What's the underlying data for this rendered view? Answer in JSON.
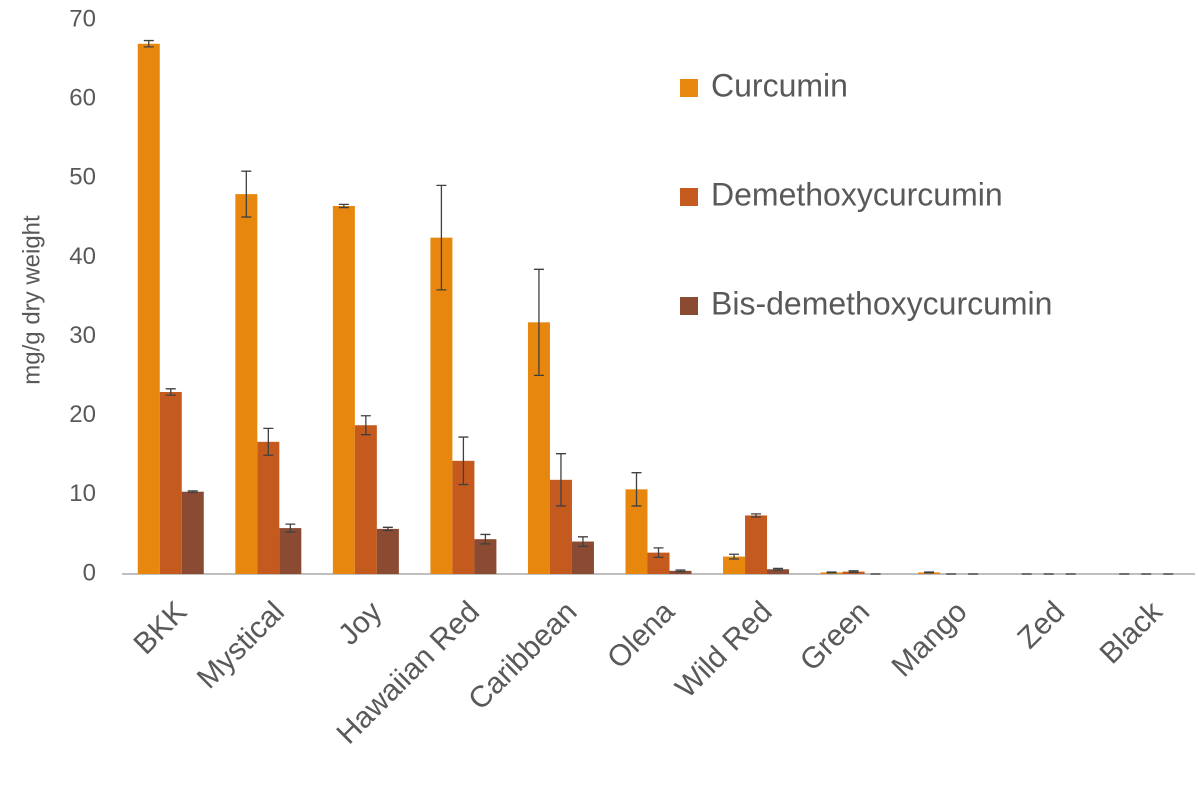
{
  "chart_data": {
    "type": "bar",
    "y_label": "mg/g dry weight",
    "categories": [
      "BKK",
      "Mystical",
      "Joy",
      "Hawaiian Red",
      "Caribbean",
      "Olena",
      "Wild Red",
      "Green",
      "Mango",
      "Zed",
      "Black"
    ],
    "series": [
      {
        "name": "Curcumin",
        "color": "#e8870e",
        "values": [
          67,
          48,
          46.5,
          42.5,
          31.8,
          10.7,
          2.2,
          0.2,
          0.2,
          0,
          0
        ],
        "errors": [
          0.4,
          2.9,
          0.2,
          6.6,
          6.7,
          2.1,
          0.3,
          0.05,
          0.05,
          0,
          0
        ]
      },
      {
        "name": "Demethoxycurcumin",
        "color": "#c55a1e",
        "values": [
          23,
          16.7,
          18.8,
          14.3,
          11.9,
          2.7,
          7.4,
          0.3,
          0,
          0,
          0
        ],
        "errors": [
          0.4,
          1.7,
          1.2,
          3,
          3.3,
          0.6,
          0.2,
          0.1,
          0,
          0,
          0
        ]
      },
      {
        "name": "Bis-demethoxycurcumin",
        "color": "#8b4a32",
        "values": [
          10.4,
          5.8,
          5.7,
          4.4,
          4.1,
          0.4,
          0.6,
          0,
          0,
          0,
          0
        ],
        "errors": [
          0.1,
          0.5,
          0.2,
          0.6,
          0.6,
          0.1,
          0.1,
          0,
          0,
          0,
          0
        ]
      }
    ],
    "ylim": [
      0,
      70
    ],
    "yticks": [
      0,
      10,
      20,
      30,
      40,
      50,
      60,
      70
    ],
    "grid": false,
    "legend": "upper right"
  }
}
